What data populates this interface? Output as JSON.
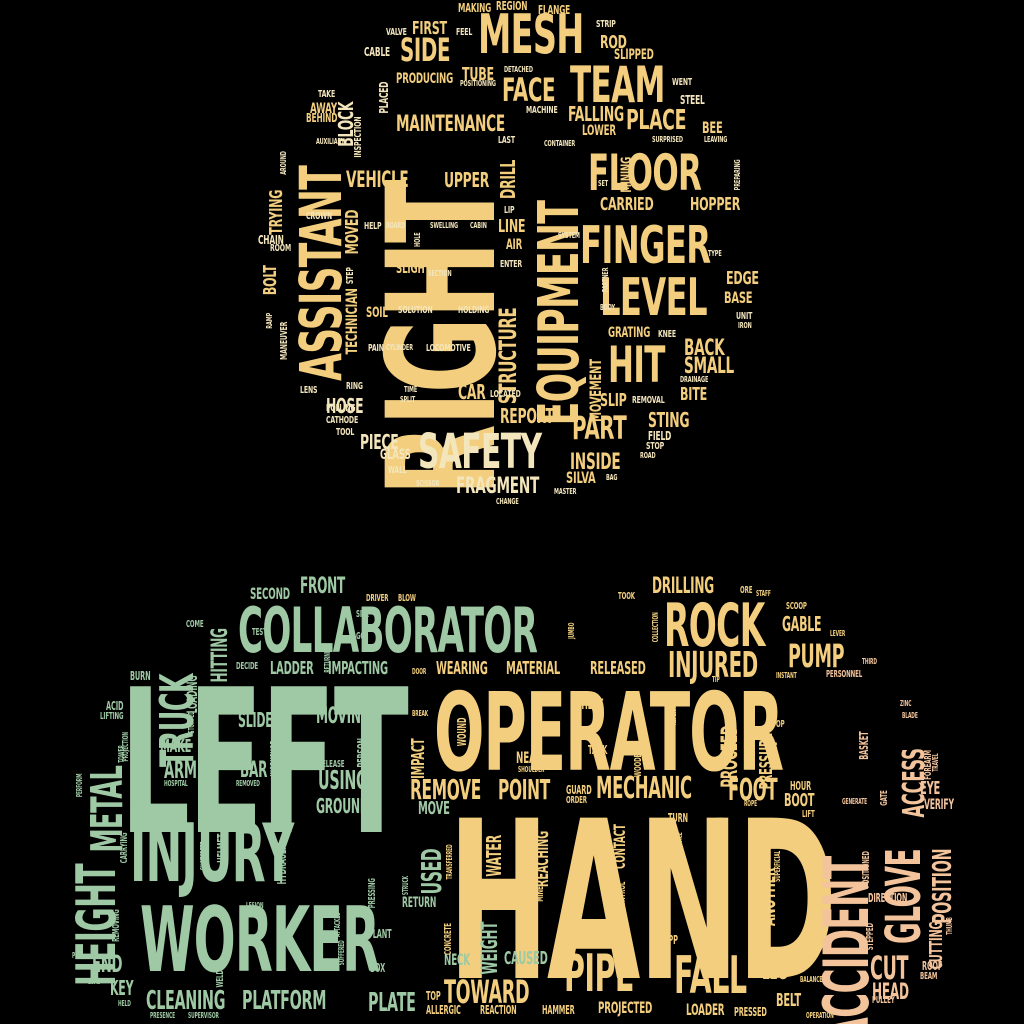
{
  "palette": {
    "background": "#000000",
    "yellow": "#F2CE7E",
    "cream": "#F4E6BC",
    "green": "#9FC9A5",
    "peach": "#F3C49C"
  },
  "top_cloud": {
    "words": [
      {
        "text": "RIGHT",
        "c": "yellow"
      },
      {
        "text": "ASSISTANT",
        "c": "yellow"
      },
      {
        "text": "EQUIPMENT",
        "c": "yellow"
      },
      {
        "text": "FINGER",
        "c": "yellow"
      },
      {
        "text": "LEVEL",
        "c": "yellow"
      },
      {
        "text": "FLOOR",
        "c": "yellow"
      },
      {
        "text": "MESH",
        "c": "yellow"
      },
      {
        "text": "TEAM",
        "c": "yellow"
      },
      {
        "text": "HIT",
        "c": "yellow"
      },
      {
        "text": "SAFETY",
        "c": "cream"
      },
      {
        "text": "PART",
        "c": "yellow"
      },
      {
        "text": "FACE",
        "c": "yellow"
      },
      {
        "text": "SIDE",
        "c": "yellow"
      },
      {
        "text": "PLACE",
        "c": "yellow"
      },
      {
        "text": "MAINTENANCE",
        "c": "yellow"
      },
      {
        "text": "FRAGMENT",
        "c": "cream"
      },
      {
        "text": "STRUCTURE",
        "c": "yellow"
      },
      {
        "text": "VEHICLE",
        "c": "yellow"
      },
      {
        "text": "UPPER",
        "c": "yellow"
      },
      {
        "text": "CARRIED",
        "c": "yellow"
      },
      {
        "text": "HOPPER",
        "c": "yellow"
      },
      {
        "text": "INSIDE",
        "c": "yellow"
      },
      {
        "text": "PIECE",
        "c": "cream"
      },
      {
        "text": "HOSE",
        "c": "cream"
      },
      {
        "text": "REPORT",
        "c": "yellow"
      },
      {
        "text": "STING",
        "c": "yellow"
      },
      {
        "text": "BACK",
        "c": "yellow"
      },
      {
        "text": "SMALL",
        "c": "yellow"
      },
      {
        "text": "BITE",
        "c": "yellow"
      },
      {
        "text": "FIRST",
        "c": "yellow"
      },
      {
        "text": "ROD",
        "c": "yellow"
      },
      {
        "text": "TUBE",
        "c": "yellow"
      },
      {
        "text": "FALLING",
        "c": "yellow"
      },
      {
        "text": "BLOCK",
        "c": "cream"
      },
      {
        "text": "DRILL",
        "c": "yellow"
      },
      {
        "text": "LINE",
        "c": "yellow"
      },
      {
        "text": "CAR",
        "c": "yellow"
      },
      {
        "text": "SLIP",
        "c": "yellow"
      },
      {
        "text": "EDGE",
        "c": "yellow"
      },
      {
        "text": "BASE",
        "c": "yellow"
      },
      {
        "text": "TRYING",
        "c": "yellow"
      },
      {
        "text": "BOLT",
        "c": "yellow"
      },
      {
        "text": "MOVED",
        "c": "yellow"
      },
      {
        "text": "TECHNICIAN",
        "c": "yellow"
      },
      {
        "text": "MOVEMENT",
        "c": "yellow"
      },
      {
        "text": "SILVA",
        "c": "yellow"
      },
      {
        "text": "GLASS",
        "c": "cream"
      },
      {
        "text": "MAKING",
        "c": "yellow"
      },
      {
        "text": "REGION",
        "c": "yellow"
      },
      {
        "text": "FLANGE",
        "c": "yellow"
      },
      {
        "text": "VALVE",
        "c": "cream"
      },
      {
        "text": "FEEL",
        "c": "cream"
      },
      {
        "text": "STRIP",
        "c": "cream"
      },
      {
        "text": "SLIPPED",
        "c": "yellow"
      },
      {
        "text": "CABLE",
        "c": "cream"
      },
      {
        "text": "PRODUCING",
        "c": "yellow"
      },
      {
        "text": "POSITIONING",
        "c": "cream"
      },
      {
        "text": "DETACHED",
        "c": "cream"
      },
      {
        "text": "WENT",
        "c": "cream"
      },
      {
        "text": "STEEL",
        "c": "cream"
      },
      {
        "text": "TAKE",
        "c": "cream"
      },
      {
        "text": "AWAY",
        "c": "yellow"
      },
      {
        "text": "BEHIND",
        "c": "yellow"
      },
      {
        "text": "AUXILIARY",
        "c": "cream"
      },
      {
        "text": "INSPECTION",
        "c": "cream"
      },
      {
        "text": "PLACED",
        "c": "cream"
      },
      {
        "text": "MACHINE",
        "c": "cream"
      },
      {
        "text": "LAST",
        "c": "cream"
      },
      {
        "text": "LOWER",
        "c": "yellow"
      },
      {
        "text": "BEE",
        "c": "yellow"
      },
      {
        "text": "CONTAINER",
        "c": "cream"
      },
      {
        "text": "SURPRISED",
        "c": "cream"
      },
      {
        "text": "LEAVING",
        "c": "cream"
      },
      {
        "text": "MINING",
        "c": "yellow"
      },
      {
        "text": "PREPARING",
        "c": "cream"
      },
      {
        "text": "SET",
        "c": "cream"
      },
      {
        "text": "AROUND",
        "c": "cream"
      },
      {
        "text": "CROWN",
        "c": "cream"
      },
      {
        "text": "LIP",
        "c": "cream"
      },
      {
        "text": "HELP",
        "c": "cream"
      },
      {
        "text": "BOARD",
        "c": "cream"
      },
      {
        "text": "HOLE",
        "c": "cream"
      },
      {
        "text": "SWELLING",
        "c": "cream"
      },
      {
        "text": "CABIN",
        "c": "cream"
      },
      {
        "text": "SYSTEM",
        "c": "cream"
      },
      {
        "text": "AIR",
        "c": "yellow"
      },
      {
        "text": "CHAIN",
        "c": "cream"
      },
      {
        "text": "ROOM",
        "c": "cream"
      },
      {
        "text": "STEP",
        "c": "cream"
      },
      {
        "text": "SLIGHT",
        "c": "yellow"
      },
      {
        "text": "SECTION",
        "c": "cream"
      },
      {
        "text": "ENTER",
        "c": "cream"
      },
      {
        "text": "PARTNER",
        "c": "cream"
      },
      {
        "text": "TYPE",
        "c": "cream"
      },
      {
        "text": "BODY",
        "c": "cream"
      },
      {
        "text": "UNIT",
        "c": "cream"
      },
      {
        "text": "IRON",
        "c": "cream"
      },
      {
        "text": "RAMP",
        "c": "cream"
      },
      {
        "text": "SOIL",
        "c": "yellow"
      },
      {
        "text": "SOLUTION",
        "c": "cream"
      },
      {
        "text": "HOLDING",
        "c": "cream"
      },
      {
        "text": "GRATING",
        "c": "yellow"
      },
      {
        "text": "KNEE",
        "c": "cream"
      },
      {
        "text": "MANEUVER",
        "c": "cream"
      },
      {
        "text": "PAIN",
        "c": "cream"
      },
      {
        "text": "CYLINDER",
        "c": "cream"
      },
      {
        "text": "LOCOMOTIVE",
        "c": "cream"
      },
      {
        "text": "DRAINAGE",
        "c": "cream"
      },
      {
        "text": "RING",
        "c": "cream"
      },
      {
        "text": "LENS",
        "c": "cream"
      },
      {
        "text": "TIME",
        "c": "cream"
      },
      {
        "text": "SPLIT",
        "c": "cream"
      },
      {
        "text": "LOCATED",
        "c": "cream"
      },
      {
        "text": "REMOVAL",
        "c": "cream"
      },
      {
        "text": "POLLING",
        "c": "cream"
      },
      {
        "text": "CATHODE",
        "c": "cream"
      },
      {
        "text": "TOOL",
        "c": "cream"
      },
      {
        "text": "FIELD",
        "c": "cream"
      },
      {
        "text": "STOP",
        "c": "cream"
      },
      {
        "text": "ROAD",
        "c": "cream"
      },
      {
        "text": "WALL",
        "c": "cream"
      },
      {
        "text": "BAG",
        "c": "cream"
      },
      {
        "text": "SCISSOR",
        "c": "cream"
      },
      {
        "text": "MASTER",
        "c": "cream"
      },
      {
        "text": "CHANGE",
        "c": "cream"
      }
    ]
  },
  "bottom_cloud": {
    "words": [
      {
        "text": "LEFT",
        "c": "green"
      },
      {
        "text": "OPERATOR",
        "c": "yellow"
      },
      {
        "text": "HAND",
        "c": "yellow"
      },
      {
        "text": "INJURY",
        "c": "green"
      },
      {
        "text": "WORKER",
        "c": "green"
      },
      {
        "text": "COLLABORATOR",
        "c": "green"
      },
      {
        "text": "ROCK",
        "c": "yellow"
      },
      {
        "text": "ACCIDENT",
        "c": "peach"
      },
      {
        "text": "GLOVE",
        "c": "peach"
      },
      {
        "text": "HEIGHT",
        "c": "green"
      },
      {
        "text": "PIPE",
        "c": "yellow"
      },
      {
        "text": "FALL",
        "c": "yellow"
      },
      {
        "text": "TRUCK",
        "c": "green"
      },
      {
        "text": "METAL",
        "c": "green"
      },
      {
        "text": "INJURED",
        "c": "yellow"
      },
      {
        "text": "PUMP",
        "c": "yellow"
      },
      {
        "text": "MECHANIC",
        "c": "yellow"
      },
      {
        "text": "FOOT",
        "c": "yellow"
      },
      {
        "text": "REMOVE",
        "c": "yellow"
      },
      {
        "text": "POINT",
        "c": "yellow"
      },
      {
        "text": "TOWARD",
        "c": "yellow"
      },
      {
        "text": "CLEANING",
        "c": "green"
      },
      {
        "text": "PLATFORM",
        "c": "green"
      },
      {
        "text": "PLATE",
        "c": "green"
      },
      {
        "text": "CUT",
        "c": "peach"
      },
      {
        "text": "ACCESS",
        "c": "peach"
      },
      {
        "text": "POSITION",
        "c": "peach"
      },
      {
        "text": "CUTTING",
        "c": "peach"
      },
      {
        "text": "HEAD",
        "c": "peach"
      },
      {
        "text": "DRILLING",
        "c": "yellow"
      },
      {
        "text": "GABLE",
        "c": "yellow"
      },
      {
        "text": "FRONT",
        "c": "green"
      },
      {
        "text": "SECOND",
        "c": "green"
      },
      {
        "text": "HITTING",
        "c": "green"
      },
      {
        "text": "LOADING",
        "c": "green"
      },
      {
        "text": "LADDER",
        "c": "green"
      },
      {
        "text": "IMPACTING",
        "c": "green"
      },
      {
        "text": "WEARING",
        "c": "yellow"
      },
      {
        "text": "MATERIAL",
        "c": "yellow"
      },
      {
        "text": "RELEASED",
        "c": "yellow"
      },
      {
        "text": "SLIDE",
        "c": "green"
      },
      {
        "text": "MOVING",
        "c": "green"
      },
      {
        "text": "MAKE",
        "c": "green"
      },
      {
        "text": "ARM",
        "c": "green"
      },
      {
        "text": "BAR",
        "c": "green"
      },
      {
        "text": "USING",
        "c": "green"
      },
      {
        "text": "GROUND",
        "c": "green"
      },
      {
        "text": "PROCEED",
        "c": "yellow"
      },
      {
        "text": "PRESSURE",
        "c": "yellow"
      },
      {
        "text": "SHEET",
        "c": "yellow"
      },
      {
        "text": "NEAR",
        "c": "yellow"
      },
      {
        "text": "WATER",
        "c": "yellow"
      },
      {
        "text": "REACHING",
        "c": "yellow"
      },
      {
        "text": "CONTACT",
        "c": "yellow"
      },
      {
        "text": "USED",
        "c": "green"
      },
      {
        "text": "IMPACT",
        "c": "yellow"
      },
      {
        "text": "MOVE",
        "c": "green"
      },
      {
        "text": "WEIGHT",
        "c": "green"
      },
      {
        "text": "CAUSED",
        "c": "green"
      },
      {
        "text": "NECK",
        "c": "green"
      },
      {
        "text": "END",
        "c": "green"
      },
      {
        "text": "KEY",
        "c": "green"
      },
      {
        "text": "LEG",
        "c": "yellow"
      },
      {
        "text": "BELT",
        "c": "yellow"
      },
      {
        "text": "BOOT",
        "c": "yellow"
      },
      {
        "text": "HOUR",
        "c": "yellow"
      },
      {
        "text": "ANOTHER",
        "c": "yellow"
      },
      {
        "text": "EYE",
        "c": "peach"
      },
      {
        "text": "VERIFY",
        "c": "peach"
      },
      {
        "text": "ROOF",
        "c": "peach"
      },
      {
        "text": "LOADER",
        "c": "yellow"
      },
      {
        "text": "PROJECTED",
        "c": "yellow"
      },
      {
        "text": "HAMMER",
        "c": "yellow"
      },
      {
        "text": "REACTION",
        "c": "yellow"
      },
      {
        "text": "ALLERGIC",
        "c": "yellow"
      },
      {
        "text": "TOP",
        "c": "yellow"
      },
      {
        "text": "RETURN",
        "c": "green"
      },
      {
        "text": "HYDRAULIC",
        "c": "green"
      },
      {
        "text": "HELMET",
        "c": "green"
      },
      {
        "text": "PLANT",
        "c": "green"
      },
      {
        "text": "BOX",
        "c": "green"
      },
      {
        "text": "WELDER",
        "c": "green"
      },
      {
        "text": "ACID",
        "c": "green"
      },
      {
        "text": "LIFTING",
        "c": "green"
      },
      {
        "text": "BURN",
        "c": "green"
      },
      {
        "text": "COME",
        "c": "green"
      },
      {
        "text": "TEST",
        "c": "green"
      },
      {
        "text": "SITE",
        "c": "green"
      },
      {
        "text": "GO",
        "c": "green"
      },
      {
        "text": "RETURNED",
        "c": "green"
      },
      {
        "text": "DRIVER",
        "c": "yellow"
      },
      {
        "text": "BLOW",
        "c": "yellow"
      },
      {
        "text": "TOOK",
        "c": "yellow"
      },
      {
        "text": "ORE",
        "c": "yellow"
      },
      {
        "text": "STAFF",
        "c": "yellow"
      },
      {
        "text": "SCOOP",
        "c": "yellow"
      },
      {
        "text": "LEVER",
        "c": "yellow"
      },
      {
        "text": "THIRD",
        "c": "peach"
      },
      {
        "text": "PERSONNEL",
        "c": "peach"
      },
      {
        "text": "INSTANT",
        "c": "yellow"
      },
      {
        "text": "TIP",
        "c": "yellow"
      },
      {
        "text": "ZINC",
        "c": "peach"
      },
      {
        "text": "BLADE",
        "c": "peach"
      },
      {
        "text": "COLLECTION",
        "c": "yellow"
      },
      {
        "text": "JUMBO",
        "c": "yellow"
      },
      {
        "text": "BREAK",
        "c": "yellow"
      },
      {
        "text": "PERSON",
        "c": "green"
      },
      {
        "text": "RELEASE",
        "c": "green"
      },
      {
        "text": "WORKSHOP",
        "c": "green"
      },
      {
        "text": "DECIDE",
        "c": "green"
      },
      {
        "text": "STOPPED",
        "c": "green"
      },
      {
        "text": "TOWER",
        "c": "green"
      },
      {
        "text": "PROJECTION",
        "c": "green"
      },
      {
        "text": "HOSPITAL",
        "c": "green"
      },
      {
        "text": "REMOVED",
        "c": "green"
      },
      {
        "text": "PERFORM",
        "c": "green"
      },
      {
        "text": "CARRYING",
        "c": "green"
      },
      {
        "text": "REMOVING",
        "c": "green"
      },
      {
        "text": "PULL",
        "c": "green"
      },
      {
        "text": "LOAD",
        "c": "green"
      },
      {
        "text": "HELD",
        "c": "green"
      },
      {
        "text": "PRESENCE",
        "c": "green"
      },
      {
        "text": "SUPERVISOR",
        "c": "green"
      },
      {
        "text": "SHOTCRETE",
        "c": "green"
      },
      {
        "text": "LESION",
        "c": "green"
      },
      {
        "text": "ATTACKED",
        "c": "green"
      },
      {
        "text": "SUFFERED",
        "c": "green"
      },
      {
        "text": "PRESSING",
        "c": "green"
      },
      {
        "text": "STRUCK",
        "c": "green"
      },
      {
        "text": "TRANSFERRED",
        "c": "yellow"
      },
      {
        "text": "CONCRETE",
        "c": "yellow"
      },
      {
        "text": "MINE",
        "c": "yellow"
      },
      {
        "text": "SURFACE",
        "c": "yellow"
      },
      {
        "text": "CONTROL",
        "c": "yellow"
      },
      {
        "text": "SLEEVE",
        "c": "yellow"
      },
      {
        "text": "EPP",
        "c": "yellow"
      },
      {
        "text": "SERVICE",
        "c": "yellow"
      },
      {
        "text": "SUDDENLY",
        "c": "yellow"
      },
      {
        "text": "WITHOUT",
        "c": "yellow"
      },
      {
        "text": "OPENING",
        "c": "yellow"
      },
      {
        "text": "TURN",
        "c": "yellow"
      },
      {
        "text": "LIFT",
        "c": "yellow"
      },
      {
        "text": "ROPE",
        "c": "yellow"
      },
      {
        "text": "SUPERFICIAL",
        "c": "yellow"
      },
      {
        "text": "COMING",
        "c": "yellow"
      },
      {
        "text": "OP",
        "c": "yellow"
      },
      {
        "text": "BASKET",
        "c": "peach"
      },
      {
        "text": "GENERATE",
        "c": "peach"
      },
      {
        "text": "GATE",
        "c": "peach"
      },
      {
        "text": "POSITIONED",
        "c": "peach"
      },
      {
        "text": "DIRECTION",
        "c": "peach"
      },
      {
        "text": "STEPPED",
        "c": "peach"
      },
      {
        "text": "THUMB",
        "c": "peach"
      },
      {
        "text": "FOREARM",
        "c": "peach"
      },
      {
        "text": "TRAVEL",
        "c": "peach"
      },
      {
        "text": "FRAME",
        "c": "yellow"
      },
      {
        "text": "BALANCE",
        "c": "yellow"
      },
      {
        "text": "PRESSED",
        "c": "yellow"
      },
      {
        "text": "OPERATION",
        "c": "yellow"
      },
      {
        "text": "PULLEY",
        "c": "peach"
      },
      {
        "text": "BEAM",
        "c": "peach"
      },
      {
        "text": "GUARD",
        "c": "yellow"
      },
      {
        "text": "ORDER",
        "c": "yellow"
      },
      {
        "text": "TANK",
        "c": "yellow"
      },
      {
        "text": "WOODEN",
        "c": "yellow"
      },
      {
        "text": "SHOULDER",
        "c": "yellow"
      },
      {
        "text": "WOUND",
        "c": "yellow"
      },
      {
        "text": "DOOR",
        "c": "yellow"
      },
      {
        "text": "REFERRED",
        "c": "yellow"
      }
    ]
  }
}
